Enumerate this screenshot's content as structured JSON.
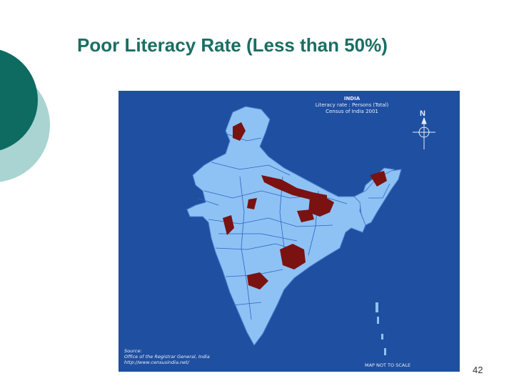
{
  "slide": {
    "title": "Poor Literacy Rate (Less than 50%)",
    "page_number": "42"
  },
  "map": {
    "header_line1": "INDIA",
    "header_line2": "Literacy rate : Persons (Total)",
    "header_line3": "Census of India 2001",
    "north_label": "N",
    "source_line1": "Source:",
    "source_line2": "Office of the Registrar General, India",
    "source_line3": "http://www.censusindia.net/",
    "scale_note": "MAP NOT TO SCALE",
    "colors": {
      "sea": "#1f4fa0",
      "land": "#8ec2f4",
      "borders": "#2f63c4",
      "poor_literacy": "#7a1212"
    },
    "highlighted_areas": [
      "Jammu & Kashmir",
      "Uttar Pradesh",
      "Bihar",
      "Jharkhand",
      "Orissa",
      "Madhya Pradesh",
      "Rajasthan",
      "Gujarat",
      "Andhra Pradesh",
      "Arunachal Pradesh"
    ]
  },
  "decoration": {
    "dark_teal": "#0e6b62",
    "light_teal": "#a9d4d2"
  }
}
